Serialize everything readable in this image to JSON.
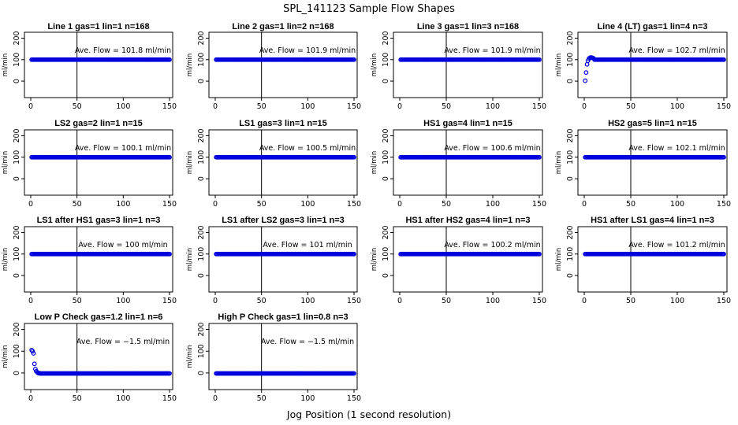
{
  "figure": {
    "title": "SPL_141123  Sample Flow Shapes",
    "xlabel": "Jog Position (1 second resolution)"
  },
  "colors": {
    "points": "#0000dd",
    "axes": "#000000",
    "background": "#ffffff"
  },
  "chart_data": [
    {
      "type": "scatter",
      "title": "Line 1 gas=1 lin=1 n=168",
      "ylabel": "ml/min",
      "flow_label": "Ave. Flow = 101.8  ml/min",
      "xlim": [
        0,
        150
      ],
      "ylim": [
        -40,
        220
      ],
      "xticks": [
        0,
        50,
        100,
        150
      ],
      "yticks": [
        0,
        100,
        200
      ],
      "vline": 50,
      "series": [
        {
          "x_start": 1,
          "x_end": 150,
          "x_step": 1,
          "y": 100
        }
      ]
    },
    {
      "type": "scatter",
      "title": "Line 2 gas=1 lin=2 n=168",
      "ylabel": "ml/min",
      "flow_label": "Ave. Flow = 101.9  ml/min",
      "xlim": [
        0,
        150
      ],
      "ylim": [
        -40,
        220
      ],
      "xticks": [
        0,
        50,
        100,
        150
      ],
      "yticks": [
        0,
        100,
        200
      ],
      "vline": 50,
      "series": [
        {
          "x_start": 1,
          "x_end": 150,
          "x_step": 1,
          "y": 100
        }
      ]
    },
    {
      "type": "scatter",
      "title": "Line 3 gas=1 lin=3 n=168",
      "ylabel": "ml/min",
      "flow_label": "Ave. Flow = 101.9  ml/min",
      "xlim": [
        0,
        150
      ],
      "ylim": [
        -40,
        220
      ],
      "xticks": [
        0,
        50,
        100,
        150
      ],
      "yticks": [
        0,
        100,
        200
      ],
      "vline": 50,
      "series": [
        {
          "x_start": 1,
          "x_end": 150,
          "x_step": 1,
          "y": 100
        }
      ]
    },
    {
      "type": "scatter",
      "title": "Line 4 (LT) gas=1 lin=4 n=3",
      "ylabel": "ml/min",
      "flow_label": "Ave. Flow = 102.7  ml/min",
      "xlim": [
        0,
        150
      ],
      "ylim": [
        -40,
        220
      ],
      "xticks": [
        0,
        50,
        100,
        150
      ],
      "yticks": [
        0,
        100,
        200
      ],
      "vline": 50,
      "series": [
        {
          "x_start": 11,
          "x_end": 150,
          "x_step": 1,
          "y": 100,
          "points": [
            [
              1,
              2
            ],
            [
              2,
              40
            ],
            [
              3,
              78
            ],
            [
              4,
              95
            ],
            [
              5,
              104
            ],
            [
              6,
              108
            ],
            [
              7,
              110
            ],
            [
              8,
              109
            ],
            [
              9,
              108
            ],
            [
              10,
              106
            ]
          ]
        }
      ]
    },
    {
      "type": "scatter",
      "title": "LS2 gas=2 lin=1 n=15",
      "ylabel": "ml/min",
      "flow_label": "Ave. Flow = 100.1  ml/min",
      "xlim": [
        0,
        150
      ],
      "ylim": [
        -40,
        220
      ],
      "xticks": [
        0,
        50,
        100,
        150
      ],
      "yticks": [
        0,
        100,
        200
      ],
      "vline": 50,
      "series": [
        {
          "x_start": 1,
          "x_end": 150,
          "x_step": 1,
          "y": 100
        }
      ]
    },
    {
      "type": "scatter",
      "title": "LS1 gas=3 lin=1 n=15",
      "ylabel": "ml/min",
      "flow_label": "Ave. Flow = 100.5  ml/min",
      "xlim": [
        0,
        150
      ],
      "ylim": [
        -40,
        220
      ],
      "xticks": [
        0,
        50,
        100,
        150
      ],
      "yticks": [
        0,
        100,
        200
      ],
      "vline": 50,
      "series": [
        {
          "x_start": 1,
          "x_end": 150,
          "x_step": 1,
          "y": 100
        }
      ]
    },
    {
      "type": "scatter",
      "title": "HS1 gas=4 lin=1 n=15",
      "ylabel": "ml/min",
      "flow_label": "Ave. Flow = 100.6  ml/min",
      "xlim": [
        0,
        150
      ],
      "ylim": [
        -40,
        220
      ],
      "xticks": [
        0,
        50,
        100,
        150
      ],
      "yticks": [
        0,
        100,
        200
      ],
      "vline": 50,
      "series": [
        {
          "x_start": 1,
          "x_end": 150,
          "x_step": 1,
          "y": 100
        }
      ]
    },
    {
      "type": "scatter",
      "title": "HS2 gas=5 lin=1 n=15",
      "ylabel": "ml/min",
      "flow_label": "Ave. Flow = 102.1  ml/min",
      "xlim": [
        0,
        150
      ],
      "ylim": [
        -40,
        220
      ],
      "xticks": [
        0,
        50,
        100,
        150
      ],
      "yticks": [
        0,
        100,
        200
      ],
      "vline": 50,
      "series": [
        {
          "x_start": 1,
          "x_end": 150,
          "x_step": 1,
          "y": 100
        }
      ]
    },
    {
      "type": "scatter",
      "title": "LS1 after HS1 gas=3 lin=1 n=3",
      "ylabel": "ml/min",
      "flow_label": "Ave. Flow = 100  ml/min",
      "xlim": [
        0,
        150
      ],
      "ylim": [
        -40,
        220
      ],
      "xticks": [
        0,
        50,
        100,
        150
      ],
      "yticks": [
        0,
        100,
        200
      ],
      "vline": 50,
      "series": [
        {
          "x_start": 1,
          "x_end": 150,
          "x_step": 1,
          "y": 100
        }
      ]
    },
    {
      "type": "scatter",
      "title": "LS1 after LS2 gas=3 lin=1 n=3",
      "ylabel": "ml/min",
      "flow_label": "Ave. Flow = 101  ml/min",
      "xlim": [
        0,
        150
      ],
      "ylim": [
        -40,
        220
      ],
      "xticks": [
        0,
        50,
        100,
        150
      ],
      "yticks": [
        0,
        100,
        200
      ],
      "vline": 50,
      "series": [
        {
          "x_start": 1,
          "x_end": 150,
          "x_step": 1,
          "y": 100
        }
      ]
    },
    {
      "type": "scatter",
      "title": "HS1 after HS2 gas=4 lin=1 n=3",
      "ylabel": "ml/min",
      "flow_label": "Ave. Flow = 100.2  ml/min",
      "xlim": [
        0,
        150
      ],
      "ylim": [
        -40,
        220
      ],
      "xticks": [
        0,
        50,
        100,
        150
      ],
      "yticks": [
        0,
        100,
        200
      ],
      "vline": 50,
      "series": [
        {
          "x_start": 1,
          "x_end": 150,
          "x_step": 1,
          "y": 100
        }
      ]
    },
    {
      "type": "scatter",
      "title": "HS1 after LS1 gas=4 lin=1 n=3",
      "ylabel": "ml/min",
      "flow_label": "Ave. Flow = 101.2  ml/min",
      "xlim": [
        0,
        150
      ],
      "ylim": [
        -40,
        220
      ],
      "xticks": [
        0,
        50,
        100,
        150
      ],
      "yticks": [
        0,
        100,
        200
      ],
      "vline": 50,
      "series": [
        {
          "x_start": 1,
          "x_end": 150,
          "x_step": 1,
          "y": 100
        }
      ]
    },
    {
      "type": "scatter",
      "title": "Low P Check gas=1.2 lin=1 n=6",
      "ylabel": "ml/min",
      "flow_label": "Ave. Flow = −1.5  ml/min",
      "xlim": [
        0,
        150
      ],
      "ylim": [
        -40,
        220
      ],
      "xticks": [
        0,
        50,
        100,
        150
      ],
      "yticks": [
        0,
        100,
        200
      ],
      "vline": 50,
      "series": [
        {
          "x_start": 10,
          "x_end": 150,
          "x_step": 1,
          "y": -2,
          "points": [
            [
              1,
              105
            ],
            [
              2,
              100
            ],
            [
              3,
              90
            ],
            [
              4,
              42
            ],
            [
              5,
              18
            ],
            [
              6,
              8
            ],
            [
              7,
              3
            ],
            [
              8,
              0
            ],
            [
              9,
              -1
            ]
          ]
        }
      ]
    },
    {
      "type": "scatter",
      "title": "High P Check gas=1 lin=0.8 n=3",
      "ylabel": "ml/min",
      "flow_label": "Ave. Flow = −1.5  ml/min",
      "xlim": [
        0,
        150
      ],
      "ylim": [
        -40,
        220
      ],
      "xticks": [
        0,
        50,
        100,
        150
      ],
      "yticks": [
        0,
        100,
        200
      ],
      "vline": 50,
      "series": [
        {
          "x_start": 1,
          "x_end": 150,
          "x_step": 1,
          "y": -2
        }
      ]
    }
  ]
}
